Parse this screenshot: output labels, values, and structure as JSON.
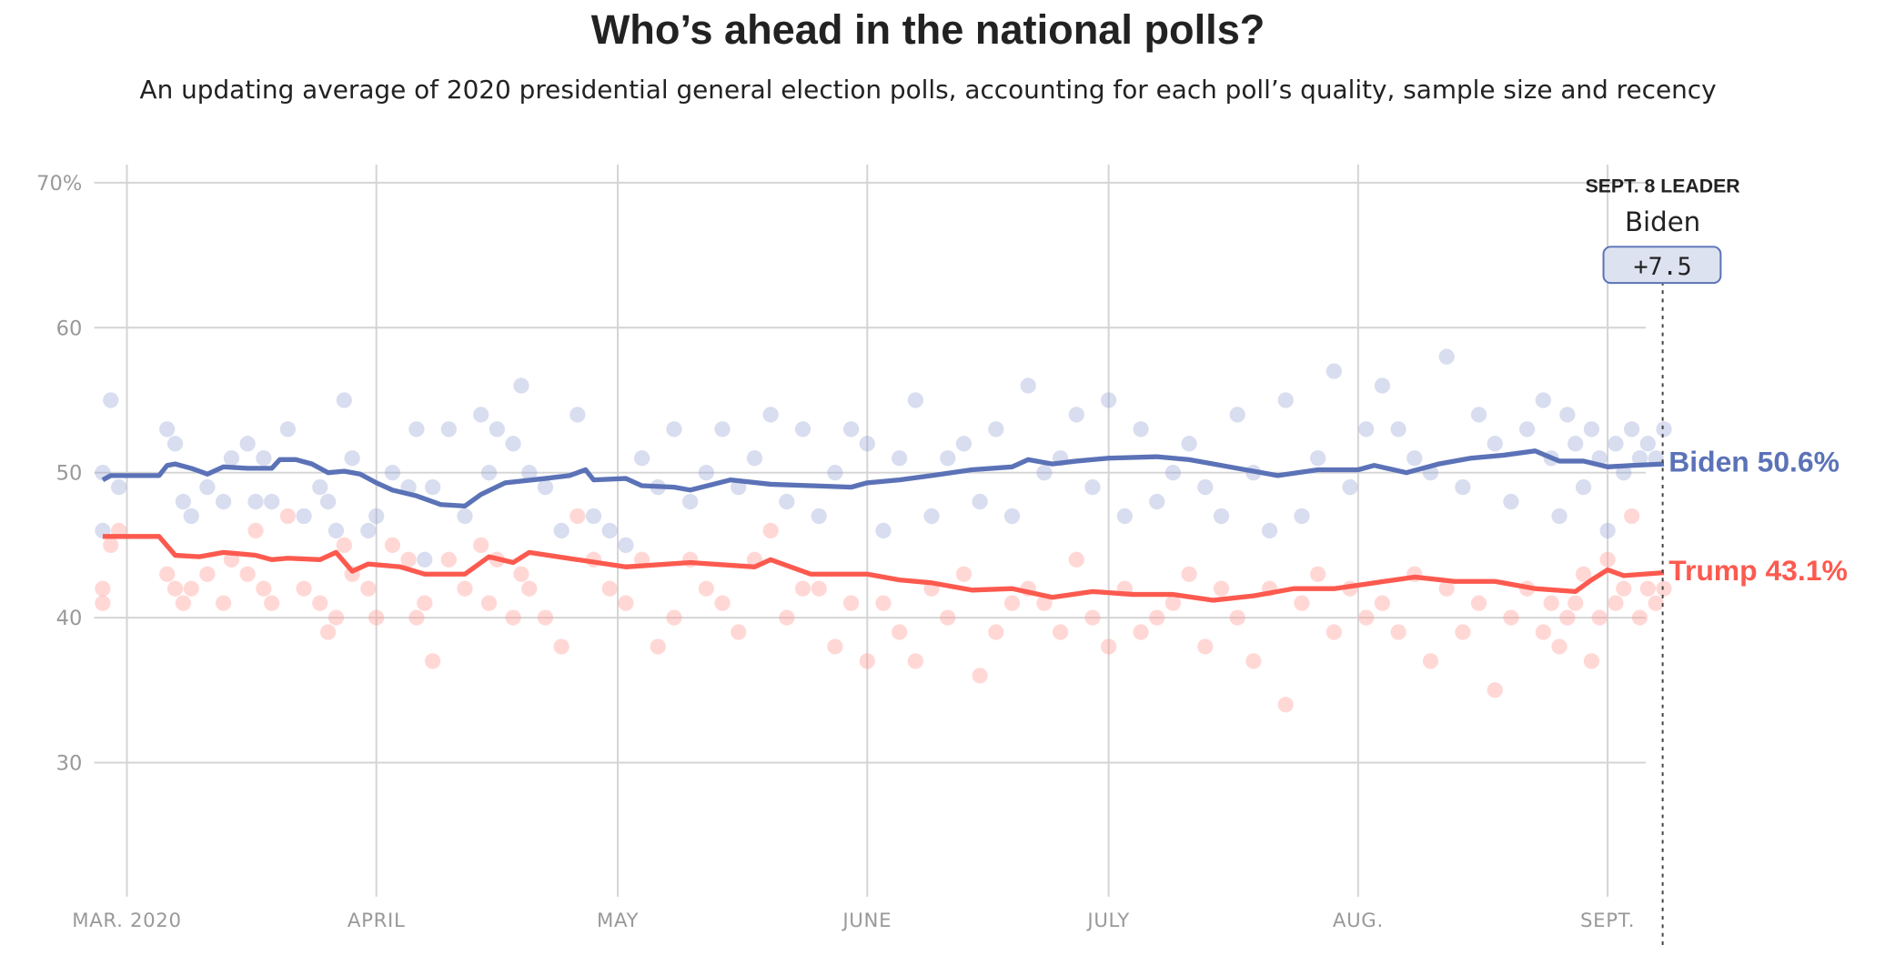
{
  "chart_data": {
    "type": "line",
    "title": "Who’s ahead in the national polls?",
    "subtitle": "An updating average of 2020 presidential general election polls, accounting for each poll’s quality, sample size and recency",
    "x_unit": "days since Mar. 1, 2020",
    "ylim": [
      21,
      70
    ],
    "y_ticks": [
      {
        "v": 70,
        "label": "70%"
      },
      {
        "v": 60,
        "label": "60"
      },
      {
        "v": 50,
        "label": "50"
      },
      {
        "v": 40,
        "label": "40"
      },
      {
        "v": 30,
        "label": "30"
      }
    ],
    "x_ticks": [
      {
        "d": 0,
        "label": "MAR. 2020"
      },
      {
        "d": 31,
        "label": "APRIL"
      },
      {
        "d": 61,
        "label": "MAY"
      },
      {
        "d": 92,
        "label": "JUNE"
      },
      {
        "d": 122,
        "label": "JULY"
      },
      {
        "d": 153,
        "label": "AUG."
      },
      {
        "d": 184,
        "label": "SEPT."
      }
    ],
    "grid": true,
    "series": [
      {
        "name": "Biden",
        "color": "#5b72b7",
        "dot_color": "#8e9fd0",
        "final_label": "Biden 50.6%",
        "points": [
          [
            -3,
            49.5
          ],
          [
            -2,
            49.8
          ],
          [
            4,
            49.8
          ],
          [
            5,
            50.5
          ],
          [
            6,
            50.6
          ],
          [
            8,
            50.3
          ],
          [
            10,
            49.9
          ],
          [
            12,
            50.4
          ],
          [
            15,
            50.3
          ],
          [
            18,
            50.3
          ],
          [
            19,
            50.9
          ],
          [
            21,
            50.9
          ],
          [
            23,
            50.6
          ],
          [
            25,
            50.0
          ],
          [
            27,
            50.1
          ],
          [
            29,
            49.9
          ],
          [
            31,
            49.3
          ],
          [
            33,
            48.8
          ],
          [
            36,
            48.4
          ],
          [
            39,
            47.8
          ],
          [
            42,
            47.7
          ],
          [
            44,
            48.5
          ],
          [
            47,
            49.3
          ],
          [
            52,
            49.6
          ],
          [
            55,
            49.8
          ],
          [
            57,
            50.2
          ],
          [
            58,
            49.5
          ],
          [
            62,
            49.6
          ],
          [
            64,
            49.1
          ],
          [
            68,
            49.0
          ],
          [
            70,
            48.8
          ],
          [
            75,
            49.5
          ],
          [
            80,
            49.2
          ],
          [
            85,
            49.1
          ],
          [
            90,
            49.0
          ],
          [
            92,
            49.3
          ],
          [
            96,
            49.5
          ],
          [
            100,
            49.8
          ],
          [
            105,
            50.2
          ],
          [
            110,
            50.4
          ],
          [
            112,
            50.9
          ],
          [
            115,
            50.6
          ],
          [
            118,
            50.8
          ],
          [
            122,
            51.0
          ],
          [
            128,
            51.1
          ],
          [
            132,
            50.9
          ],
          [
            137,
            50.4
          ],
          [
            143,
            49.8
          ],
          [
            148,
            50.2
          ],
          [
            153,
            50.2
          ],
          [
            155,
            50.5
          ],
          [
            159,
            50.0
          ],
          [
            163,
            50.6
          ],
          [
            167,
            51.0
          ],
          [
            171,
            51.2
          ],
          [
            175,
            51.5
          ],
          [
            178,
            50.8
          ],
          [
            181,
            50.8
          ],
          [
            184,
            50.4
          ],
          [
            187,
            50.5
          ],
          [
            191,
            50.6
          ]
        ]
      },
      {
        "name": "Trump",
        "color": "#fc5a4f",
        "dot_color": "#ff9e98",
        "final_label": "Trump 43.1%",
        "points": [
          [
            -3,
            45.6
          ],
          [
            4,
            45.6
          ],
          [
            6,
            44.3
          ],
          [
            9,
            44.2
          ],
          [
            12,
            44.5
          ],
          [
            16,
            44.3
          ],
          [
            18,
            44.0
          ],
          [
            20,
            44.1
          ],
          [
            24,
            44.0
          ],
          [
            26,
            44.5
          ],
          [
            28,
            43.2
          ],
          [
            30,
            43.7
          ],
          [
            34,
            43.5
          ],
          [
            37,
            43.0
          ],
          [
            42,
            43.0
          ],
          [
            45,
            44.2
          ],
          [
            48,
            43.8
          ],
          [
            50,
            44.5
          ],
          [
            56,
            44.0
          ],
          [
            62,
            43.5
          ],
          [
            70,
            43.8
          ],
          [
            78,
            43.5
          ],
          [
            80,
            44.0
          ],
          [
            85,
            43.0
          ],
          [
            92,
            43.0
          ],
          [
            96,
            42.6
          ],
          [
            100,
            42.4
          ],
          [
            105,
            41.9
          ],
          [
            110,
            42.0
          ],
          [
            115,
            41.4
          ],
          [
            120,
            41.8
          ],
          [
            125,
            41.6
          ],
          [
            130,
            41.6
          ],
          [
            135,
            41.2
          ],
          [
            140,
            41.5
          ],
          [
            145,
            42.0
          ],
          [
            150,
            42.0
          ],
          [
            155,
            42.4
          ],
          [
            160,
            42.8
          ],
          [
            165,
            42.5
          ],
          [
            170,
            42.5
          ],
          [
            175,
            42.0
          ],
          [
            180,
            41.8
          ],
          [
            182,
            42.6
          ],
          [
            184,
            43.3
          ],
          [
            186,
            42.9
          ],
          [
            191,
            43.1
          ]
        ]
      }
    ],
    "polls_biden_trump": [
      [
        -3,
        50,
        42
      ],
      [
        -3,
        46,
        41
      ],
      [
        -2,
        55,
        45
      ],
      [
        -1,
        49,
        46
      ],
      [
        5,
        53,
        43
      ],
      [
        6,
        52,
        42
      ],
      [
        7,
        48,
        41
      ],
      [
        8,
        47,
        42
      ],
      [
        10,
        49,
        43
      ],
      [
        12,
        48,
        41
      ],
      [
        13,
        51,
        44
      ],
      [
        15,
        52,
        43
      ],
      [
        16,
        48,
        46
      ],
      [
        17,
        51,
        42
      ],
      [
        18,
        48,
        41
      ],
      [
        20,
        53,
        47
      ],
      [
        22,
        47,
        42
      ],
      [
        24,
        49,
        41
      ],
      [
        25,
        48,
        39
      ],
      [
        26,
        46,
        40
      ],
      [
        27,
        55,
        45
      ],
      [
        28,
        51,
        43
      ],
      [
        30,
        46,
        42
      ],
      [
        31,
        47,
        40
      ],
      [
        33,
        50,
        45
      ],
      [
        35,
        49,
        44
      ],
      [
        36,
        53,
        40
      ],
      [
        37,
        44,
        41
      ],
      [
        38,
        49,
        37
      ],
      [
        40,
        53,
        44
      ],
      [
        42,
        47,
        42
      ],
      [
        44,
        54,
        45
      ],
      [
        45,
        50,
        41
      ],
      [
        46,
        53,
        44
      ],
      [
        48,
        52,
        40
      ],
      [
        49,
        56,
        43
      ],
      [
        50,
        50,
        42
      ],
      [
        52,
        49,
        40
      ],
      [
        54,
        46,
        38
      ],
      [
        56,
        54,
        47
      ],
      [
        58,
        47,
        44
      ],
      [
        60,
        46,
        42
      ],
      [
        62,
        45,
        41
      ],
      [
        64,
        51,
        44
      ],
      [
        66,
        49,
        38
      ],
      [
        68,
        53,
        40
      ],
      [
        70,
        48,
        44
      ],
      [
        72,
        50,
        42
      ],
      [
        74,
        53,
        41
      ],
      [
        76,
        49,
        39
      ],
      [
        78,
        51,
        44
      ],
      [
        80,
        54,
        46
      ],
      [
        82,
        48,
        40
      ],
      [
        84,
        53,
        42
      ],
      [
        86,
        47,
        42
      ],
      [
        88,
        50,
        38
      ],
      [
        90,
        53,
        41
      ],
      [
        92,
        52,
        37
      ],
      [
        94,
        46,
        41
      ],
      [
        96,
        51,
        39
      ],
      [
        98,
        55,
        37
      ],
      [
        100,
        47,
        42
      ],
      [
        102,
        51,
        40
      ],
      [
        104,
        52,
        43
      ],
      [
        106,
        48,
        36
      ],
      [
        108,
        53,
        39
      ],
      [
        110,
        47,
        41
      ],
      [
        112,
        56,
        42
      ],
      [
        114,
        50,
        41
      ],
      [
        116,
        51,
        39
      ],
      [
        118,
        54,
        44
      ],
      [
        120,
        49,
        40
      ],
      [
        122,
        55,
        38
      ],
      [
        124,
        47,
        42
      ],
      [
        126,
        53,
        39
      ],
      [
        128,
        48,
        40
      ],
      [
        130,
        50,
        41
      ],
      [
        132,
        52,
        43
      ],
      [
        134,
        49,
        38
      ],
      [
        136,
        47,
        42
      ],
      [
        138,
        54,
        40
      ],
      [
        140,
        50,
        37
      ],
      [
        142,
        46,
        42
      ],
      [
        144,
        55,
        34
      ],
      [
        146,
        47,
        41
      ],
      [
        148,
        51,
        43
      ],
      [
        150,
        57,
        39
      ],
      [
        152,
        49,
        42
      ],
      [
        154,
        53,
        40
      ],
      [
        156,
        56,
        41
      ],
      [
        158,
        53,
        39
      ],
      [
        160,
        51,
        43
      ],
      [
        162,
        50,
        37
      ],
      [
        164,
        58,
        42
      ],
      [
        166,
        49,
        39
      ],
      [
        168,
        54,
        41
      ],
      [
        170,
        52,
        35
      ],
      [
        172,
        48,
        40
      ],
      [
        174,
        53,
        42
      ],
      [
        176,
        55,
        39
      ],
      [
        177,
        51,
        41
      ],
      [
        178,
        47,
        38
      ],
      [
        179,
        54,
        40
      ],
      [
        180,
        52,
        41
      ],
      [
        181,
        49,
        43
      ],
      [
        182,
        53,
        37
      ],
      [
        183,
        51,
        40
      ],
      [
        184,
        46,
        44
      ],
      [
        185,
        52,
        41
      ],
      [
        186,
        50,
        42
      ],
      [
        187,
        53,
        47
      ],
      [
        188,
        51,
        40
      ],
      [
        189,
        52,
        42
      ],
      [
        190,
        51,
        41
      ],
      [
        191,
        53,
        42
      ]
    ],
    "leader_annotation": {
      "heading": "SEPT. 8 LEADER",
      "name": "Biden",
      "margin": "+7.5",
      "margin_value": 7.5
    }
  }
}
